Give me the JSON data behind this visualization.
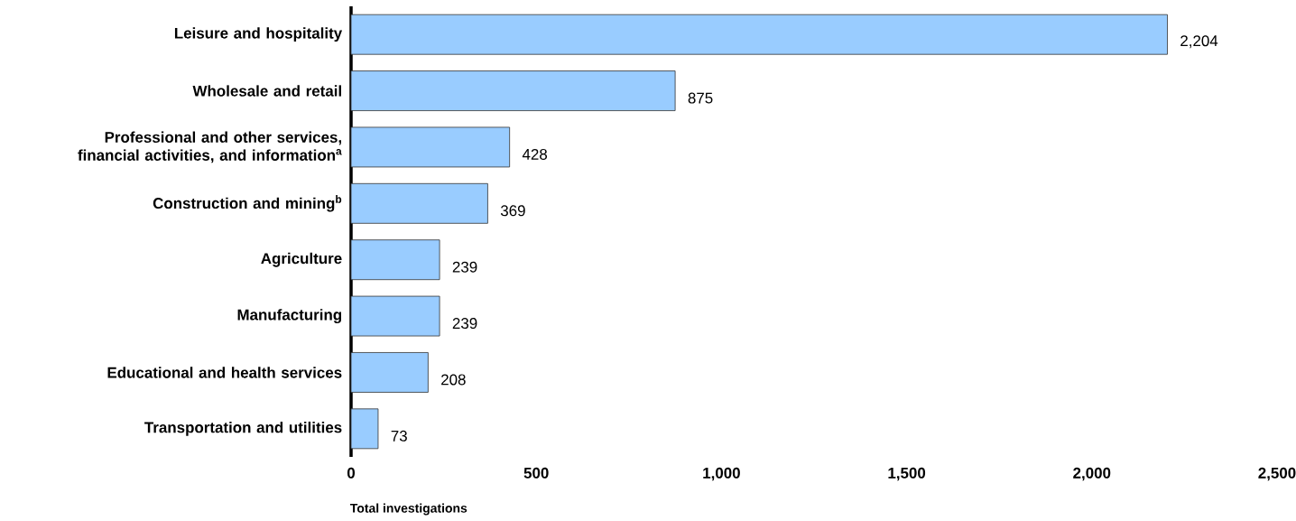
{
  "chart_data": {
    "type": "bar",
    "orientation": "horizontal",
    "categories": [
      "Leisure and hospitality",
      "Wholesale and retail",
      "Professional and other services, financial activities, and information$^{a}$",
      "Construction and mining$^{b}$",
      "Agriculture",
      "Manufacturing",
      "Educational and health services",
      "Transportation and utilities"
    ],
    "values": [
      2204,
      875,
      428,
      369,
      239,
      239,
      208,
      73
    ],
    "value_labels": [
      "2,204",
      "875",
      "428",
      "369",
      "239",
      "239",
      "208",
      "73"
    ],
    "color": "#99ccff",
    "xlim": [
      0,
      2500
    ],
    "xticks": [
      0,
      500,
      {
        "value": 1000,
        "label": "1,000"
      },
      {
        "value": 1500,
        "label": "1,500"
      },
      {
        "value": 2000,
        "label": "2,000"
      },
      {
        "value": 2500,
        "label": "2,500"
      }
    ],
    "xlabel": "Total investigations"
  }
}
